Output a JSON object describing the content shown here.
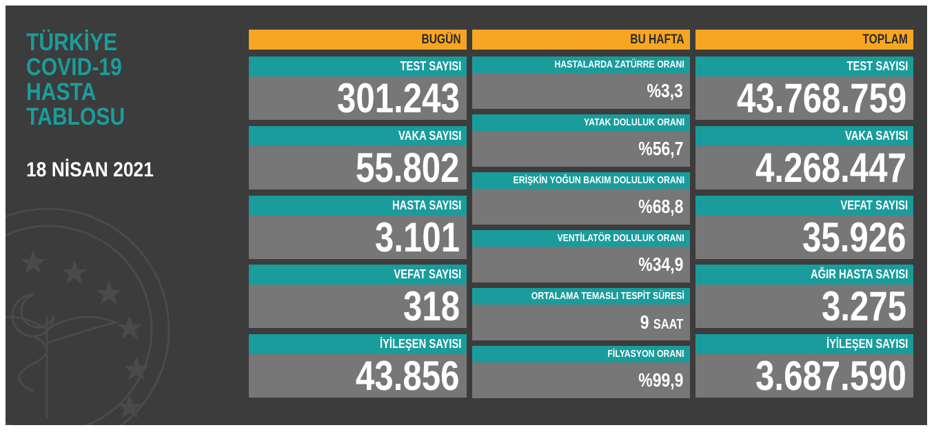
{
  "header": {
    "title": [
      "TÜRKİYE",
      "COVID-19",
      "HASTA",
      "TABLOSU"
    ],
    "date": "18 NİSAN 2021"
  },
  "columns": [
    {
      "heading": "BUGÜN",
      "items": [
        {
          "label": "TEST SAYISI",
          "value": "301.243"
        },
        {
          "label": "VAKA SAYISI",
          "value": "55.802"
        },
        {
          "label": "HASTA SAYISI",
          "value": "3.101"
        },
        {
          "label": "VEFAT SAYISI",
          "value": "318"
        },
        {
          "label": "İYİLEŞEN SAYISI",
          "value": "43.856"
        }
      ]
    },
    {
      "heading": "BU HAFTA",
      "items": [
        {
          "label": "HASTALARDA ZATÜRRE ORANI",
          "value": "%3,3"
        },
        {
          "label": "YATAK DOLULUK ORANI",
          "value": "%56,7"
        },
        {
          "label": "ERİŞKİN YOĞUN BAKIM DOLULUK ORANI",
          "value": "%68,8"
        },
        {
          "label": "VENTİLATÖR DOLULUK ORANI",
          "value": "%34,9"
        },
        {
          "label": "ORTALAMA TEMASLI TESPİT SÜRESİ",
          "value": "9",
          "unit": "SAAT"
        },
        {
          "label": "FİLYASYON ORANI",
          "value": "%99,9"
        }
      ]
    },
    {
      "heading": "TOPLAM",
      "items": [
        {
          "label": "TEST SAYISI",
          "value": "43.768.759"
        },
        {
          "label": "VAKA SAYISI",
          "value": "4.268.447"
        },
        {
          "label": "VEFAT SAYISI",
          "value": "35.926"
        },
        {
          "label": "AĞIR HASTA SAYISI",
          "value": "3.275"
        },
        {
          "label": "İYİLEŞEN SAYISI",
          "value": "3.687.590"
        }
      ]
    }
  ]
}
